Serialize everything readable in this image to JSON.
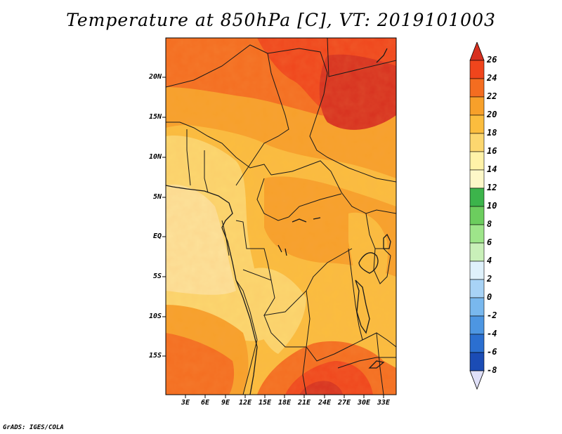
{
  "title": "Temperature at 850hPa [C], VT: 2019101003",
  "credit": "GrADS: IGES/COLA",
  "map": {
    "lat_labels": [
      "20N",
      "15N",
      "10N",
      "5N",
      "EQ",
      "5S",
      "10S",
      "15S"
    ],
    "lon_labels": [
      "3E",
      "6E",
      "9E",
      "12E",
      "15E",
      "18E",
      "21E",
      "24E",
      "27E",
      "30E",
      "33E"
    ]
  },
  "colorbar": {
    "labels": [
      "26",
      "24",
      "22",
      "20",
      "18",
      "16",
      "14",
      "12",
      "10",
      "8",
      "6",
      "4",
      "2",
      "0",
      "-2",
      "-4",
      "-6",
      "-8"
    ],
    "colors": [
      "#d7301f",
      "#f0451c",
      "#f46d20",
      "#f7a02a",
      "#fbbd3e",
      "#fcd76f",
      "#fff2a8",
      "#3cb44b",
      "#6ccd5e",
      "#9ee58a",
      "#c9f0b9",
      "#d4e9fb",
      "#a8d3f6",
      "#79b8ee",
      "#4d96e2",
      "#2b6fd0",
      "#1b4cb5",
      "#123089",
      "#0c1a5c",
      "#e0e0f8"
    ],
    "over_color": "#d7301f",
    "under_color": "#e0e0f8"
  }
}
